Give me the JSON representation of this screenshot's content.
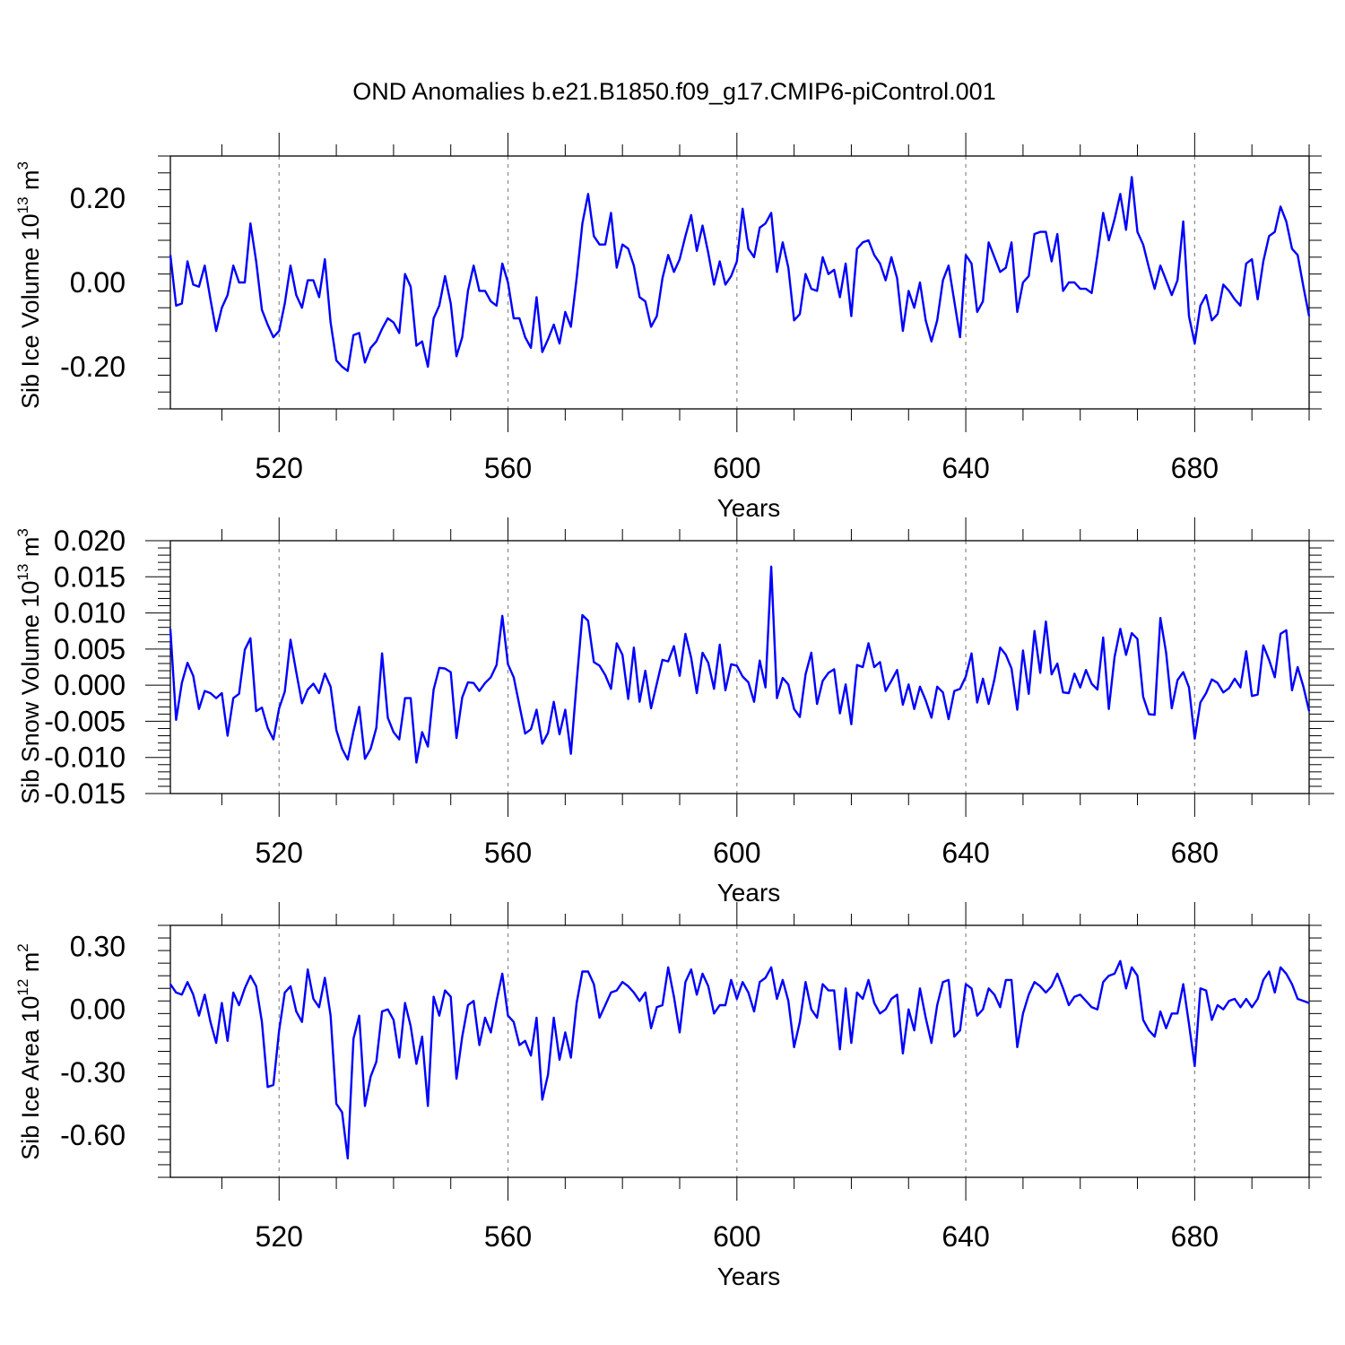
{
  "title": "OND Anomalies b.e21.B1850.f09_g17.CMIP6-piControl.001",
  "line_color": "#0000ff",
  "chart_data": [
    {
      "type": "line",
      "title": "OND Anomalies b.e21.B1850.f09_g17.CMIP6-piControl.001",
      "xlabel": "Years",
      "ylabel_prefix": "Sib Ice Volume 10",
      "ylabel_exp": "13",
      "ylabel_unit": " m",
      "ylabel_unit_exp": "3",
      "xlim": [
        501,
        700
      ],
      "ylim": [
        -0.3,
        0.3
      ],
      "xticks": [
        520,
        560,
        600,
        640,
        680
      ],
      "yticks": [
        0.2,
        0.0,
        -0.2
      ],
      "ytick_labels": [
        "0.20",
        "0.00",
        "-0.20"
      ],
      "grid": "vertical dashed at major x ticks",
      "series": [
        {
          "name": "Sib Ice Volume",
          "x_start": 501,
          "values": [
            0.065,
            -0.055,
            -0.05,
            0.05,
            -0.005,
            -0.01,
            0.04,
            -0.04,
            -0.115,
            -0.06,
            -0.03,
            0.04,
            0.0,
            0.0,
            0.14,
            0.05,
            -0.065,
            -0.1,
            -0.13,
            -0.115,
            -0.05,
            0.04,
            -0.03,
            -0.06,
            0.005,
            0.005,
            -0.035,
            0.055,
            -0.095,
            -0.185,
            -0.2,
            -0.21,
            -0.125,
            -0.12,
            -0.19,
            -0.155,
            -0.14,
            -0.11,
            -0.085,
            -0.095,
            -0.12,
            0.02,
            -0.01,
            -0.15,
            -0.14,
            -0.2,
            -0.085,
            -0.055,
            0.015,
            -0.05,
            -0.175,
            -0.13,
            -0.02,
            0.04,
            -0.02,
            -0.02,
            -0.045,
            -0.055,
            0.045,
            0.0,
            -0.085,
            -0.085,
            -0.13,
            -0.155,
            -0.035,
            -0.165,
            -0.135,
            -0.1,
            -0.145,
            -0.07,
            -0.105,
            0.01,
            0.14,
            0.21,
            0.11,
            0.09,
            0.09,
            0.165,
            0.035,
            0.09,
            0.08,
            0.04,
            -0.035,
            -0.045,
            -0.105,
            -0.08,
            0.01,
            0.065,
            0.025,
            0.055,
            0.11,
            0.16,
            0.075,
            0.135,
            0.07,
            -0.005,
            0.05,
            -0.005,
            0.015,
            0.05,
            0.175,
            0.08,
            0.06,
            0.13,
            0.14,
            0.165,
            0.025,
            0.095,
            0.035,
            -0.09,
            -0.075,
            0.02,
            -0.015,
            -0.02,
            0.06,
            0.02,
            0.03,
            -0.035,
            0.045,
            -0.08,
            0.08,
            0.095,
            0.1,
            0.065,
            0.045,
            0.005,
            0.06,
            0.01,
            -0.115,
            -0.02,
            -0.06,
            0.0,
            -0.09,
            -0.14,
            -0.09,
            0.005,
            0.04,
            -0.045,
            -0.13,
            0.065,
            0.045,
            -0.07,
            -0.045,
            0.095,
            0.06,
            0.025,
            0.035,
            0.095,
            -0.07,
            0.0,
            0.015,
            0.115,
            0.12,
            0.12,
            0.05,
            0.115,
            -0.02,
            0.0,
            0.0,
            -0.015,
            -0.015,
            -0.025,
            0.065,
            0.165,
            0.1,
            0.15,
            0.21,
            0.125,
            0.25,
            0.12,
            0.09,
            0.035,
            -0.015,
            0.04,
            0.005,
            -0.03,
            0.005,
            0.145,
            -0.08,
            -0.145,
            -0.055,
            -0.03,
            -0.09,
            -0.075,
            -0.005,
            -0.02,
            -0.04,
            -0.055,
            0.045,
            0.055,
            -0.04,
            0.05,
            0.11,
            0.12,
            0.18,
            0.145,
            0.08,
            0.065,
            -0.01,
            -0.08
          ]
        }
      ]
    },
    {
      "type": "line",
      "xlabel": "Years",
      "ylabel_prefix": "Sib Snow Volume 10",
      "ylabel_exp": "13",
      "ylabel_unit": " m",
      "ylabel_unit_exp": "3",
      "xlim": [
        501,
        700
      ],
      "ylim": [
        -0.015,
        0.02
      ],
      "xticks": [
        520,
        560,
        600,
        640,
        680
      ],
      "yticks": [
        0.02,
        0.015,
        0.01,
        0.005,
        0.0,
        -0.005,
        -0.01,
        -0.015
      ],
      "ytick_labels": [
        "0.020",
        "0.015",
        "0.010",
        "0.005",
        "0.000",
        "-0.005",
        "-0.010",
        "-0.015"
      ],
      "grid": "vertical dashed at major x ticks",
      "series": [
        {
          "name": "Sib Snow Volume",
          "x_start": 501,
          "values": [
            0.0078,
            -0.0048,
            0.0003,
            0.0031,
            0.0013,
            -0.0033,
            -0.0008,
            -0.0011,
            -0.0018,
            -0.0011,
            -0.007,
            -0.0018,
            -0.0012,
            0.0049,
            0.0065,
            -0.0036,
            -0.0031,
            -0.0059,
            -0.0075,
            -0.0032,
            -0.0009,
            0.0063,
            0.0018,
            -0.0025,
            -0.0006,
            0.0002,
            -0.0011,
            0.0016,
            -0.0002,
            -0.0062,
            -0.0088,
            -0.0103,
            -0.0064,
            -0.003,
            -0.0102,
            -0.0088,
            -0.0059,
            0.0044,
            -0.0045,
            -0.0065,
            -0.0075,
            -0.0018,
            -0.0018,
            -0.0107,
            -0.0065,
            -0.0085,
            -0.0006,
            0.0024,
            0.0023,
            0.0018,
            -0.0073,
            -0.0017,
            0.0004,
            0.0003,
            -0.0008,
            0.0003,
            0.0011,
            0.0028,
            0.0096,
            0.0029,
            0.0011,
            -0.0028,
            -0.0067,
            -0.0061,
            -0.0034,
            -0.0081,
            -0.0066,
            -0.0023,
            -0.0068,
            -0.0034,
            -0.0095,
            0.0004,
            0.0097,
            0.0089,
            0.0032,
            0.0027,
            0.0014,
            -0.0005,
            0.0058,
            0.0042,
            -0.0019,
            0.0052,
            -0.0023,
            0.002,
            -0.0032,
            0.0002,
            0.0035,
            0.0033,
            0.0054,
            0.0013,
            0.0071,
            0.0038,
            -0.0011,
            0.0045,
            0.0031,
            -0.0005,
            0.0056,
            -0.0007,
            0.0029,
            0.0027,
            0.0012,
            0.0004,
            -0.0023,
            0.0034,
            -0.0003,
            0.0164,
            -0.0018,
            0.001,
            0.0001,
            -0.0033,
            -0.0044,
            0.0015,
            0.0045,
            -0.0026,
            0.0006,
            0.0017,
            0.0022,
            -0.0039,
            0.0001,
            -0.0054,
            0.0028,
            0.0025,
            0.0058,
            0.0025,
            0.0032,
            -0.0008,
            0.0006,
            0.0021,
            -0.0027,
            0.0001,
            -0.0033,
            -0.0002,
            -0.0021,
            -0.0045,
            -0.0002,
            -0.001,
            -0.0047,
            -0.0008,
            -0.0005,
            0.0012,
            0.0044,
            -0.0024,
            0.0009,
            -0.0026,
            0.0008,
            0.0052,
            0.0042,
            0.0023,
            -0.0034,
            0.0048,
            -0.0012,
            0.0075,
            0.0017,
            0.0088,
            0.0015,
            0.003,
            -0.001,
            -0.0011,
            0.0016,
            -0.0003,
            0.0021,
            0.0002,
            -0.0006,
            0.0066,
            -0.0033,
            0.0039,
            0.0078,
            0.0042,
            0.0072,
            0.0064,
            -0.0016,
            -0.004,
            -0.0041,
            0.0093,
            0.0045,
            -0.0032,
            0.0007,
            0.0018,
            -0.0003,
            -0.0074,
            -0.0024,
            -0.0011,
            0.0008,
            0.0003,
            -0.001,
            -0.0004,
            0.0009,
            -0.0003,
            0.0047,
            -0.0015,
            -0.0013,
            0.0055,
            0.0035,
            0.0011,
            0.0071,
            0.0076,
            -0.0007,
            0.0025,
            -0.0002,
            -0.0036
          ]
        }
      ]
    },
    {
      "type": "line",
      "xlabel": "Years",
      "ylabel_prefix": "Sib Ice Area 10",
      "ylabel_exp": "12",
      "ylabel_unit": " m",
      "ylabel_unit_exp": "2",
      "xlim": [
        501,
        700
      ],
      "ylim": [
        -0.8,
        0.4
      ],
      "xticks": [
        520,
        560,
        600,
        640,
        680
      ],
      "yticks": [
        0.3,
        0.0,
        -0.3,
        -0.6
      ],
      "ytick_labels": [
        "0.30",
        "0.00",
        "-0.30",
        "-0.60"
      ],
      "grid": "vertical dashed at major x ticks",
      "series": [
        {
          "name": "Sib Ice Area",
          "x_start": 501,
          "values": [
            0.12,
            0.08,
            0.07,
            0.13,
            0.07,
            -0.03,
            0.07,
            -0.06,
            -0.16,
            0.03,
            -0.15,
            0.08,
            0.02,
            0.1,
            0.16,
            0.11,
            -0.06,
            -0.37,
            -0.36,
            -0.1,
            0.08,
            0.11,
            -0.01,
            -0.06,
            0.19,
            0.05,
            0.01,
            0.15,
            -0.03,
            -0.45,
            -0.49,
            -0.71,
            -0.14,
            -0.03,
            -0.46,
            -0.32,
            -0.25,
            -0.01,
            0.0,
            -0.05,
            -0.23,
            0.03,
            -0.08,
            -0.26,
            -0.13,
            -0.46,
            0.06,
            -0.03,
            0.09,
            0.06,
            -0.33,
            -0.13,
            0.02,
            0.04,
            -0.17,
            -0.04,
            -0.11,
            0.04,
            0.17,
            -0.03,
            -0.06,
            -0.17,
            -0.15,
            -0.22,
            -0.04,
            -0.43,
            -0.31,
            -0.04,
            -0.24,
            -0.11,
            -0.23,
            0.03,
            0.18,
            0.18,
            0.12,
            -0.04,
            0.02,
            0.08,
            0.09,
            0.13,
            0.11,
            0.08,
            0.04,
            0.08,
            -0.09,
            0.01,
            0.02,
            0.2,
            0.06,
            -0.11,
            0.13,
            0.19,
            0.07,
            0.17,
            0.11,
            -0.02,
            0.02,
            0.02,
            0.14,
            0.05,
            0.13,
            0.08,
            -0.01,
            0.13,
            0.15,
            0.2,
            0.05,
            0.14,
            0.04,
            -0.18,
            -0.06,
            0.13,
            0.0,
            -0.04,
            0.12,
            0.09,
            0.09,
            -0.19,
            0.1,
            -0.16,
            0.08,
            0.05,
            0.14,
            0.03,
            -0.02,
            0.0,
            0.05,
            0.07,
            -0.21,
            0.0,
            -0.1,
            0.1,
            -0.04,
            -0.16,
            0.02,
            0.13,
            0.14,
            -0.13,
            -0.1,
            0.12,
            0.1,
            -0.03,
            0.0,
            0.1,
            0.07,
            0.01,
            0.14,
            0.14,
            -0.18,
            -0.02,
            0.07,
            0.13,
            0.11,
            0.08,
            0.11,
            0.17,
            0.1,
            0.02,
            0.06,
            0.07,
            0.04,
            0.01,
            0.0,
            0.13,
            0.16,
            0.17,
            0.23,
            0.1,
            0.2,
            0.16,
            -0.05,
            -0.1,
            -0.13,
            -0.01,
            -0.09,
            -0.02,
            -0.02,
            0.12,
            -0.07,
            -0.27,
            0.1,
            0.09,
            -0.05,
            0.02,
            0.0,
            0.04,
            0.05,
            0.01,
            0.05,
            0.01,
            0.05,
            0.14,
            0.18,
            0.08,
            0.2,
            0.17,
            0.12,
            0.05,
            0.04,
            0.03
          ]
        }
      ]
    }
  ]
}
